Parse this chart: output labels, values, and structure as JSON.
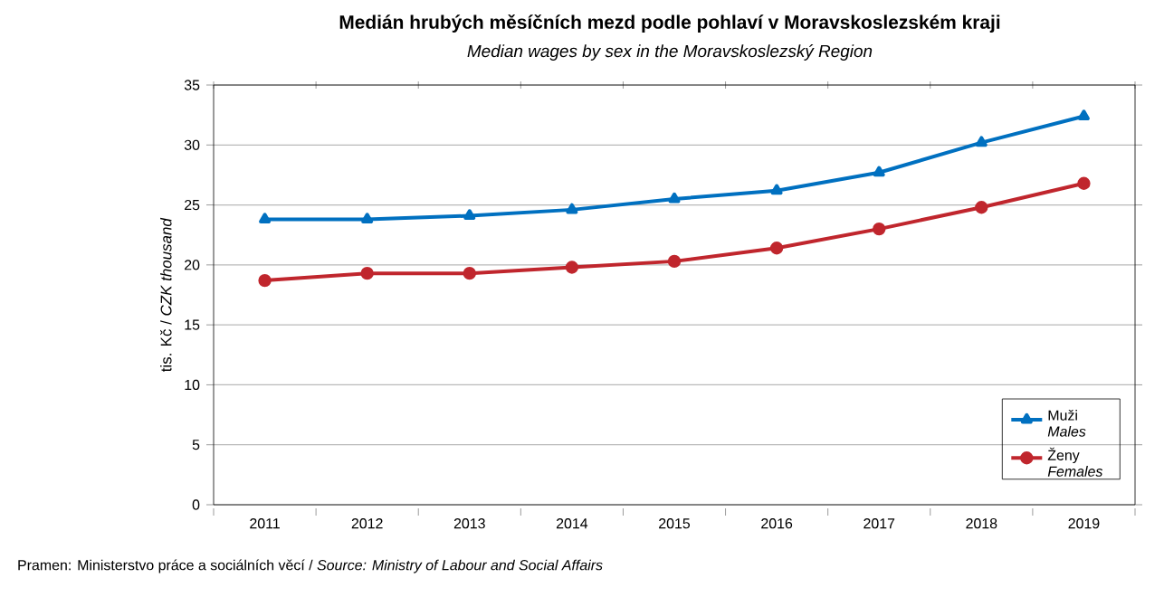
{
  "chart_data": {
    "type": "line",
    "title": "Medián hrubých měsíčních mezd podle pohlaví v Moravskoslezském kraji",
    "subtitle": "*Median wages by sex in the* Moravskoslezský *Region*",
    "ylabel": "tis. Kč / *CZK thousand*",
    "annotations": [
      "Pramen: Ministerstvo práce a sociálních věcí / *Source: Ministry of Labour and Social Affairs*"
    ],
    "categories": [
      "2011",
      "2012",
      "2013",
      "2014",
      "2015",
      "2016",
      "2017",
      "2018",
      "2019"
    ],
    "series": [
      {
        "name": "Muži *Males*",
        "color": "#0070c0",
        "marker": "triangle",
        "values": [
          23.8,
          23.8,
          24.1,
          24.6,
          25.5,
          26.2,
          27.7,
          30.2,
          32.4
        ]
      },
      {
        "name": "Ženy *Females*",
        "color": "#c0262d",
        "marker": "circle",
        "values": [
          18.7,
          19.3,
          19.3,
          19.8,
          20.3,
          21.4,
          23.0,
          24.8,
          26.8
        ]
      }
    ],
    "ylim": [
      0,
      35
    ],
    "yticks": [
      0,
      5,
      10,
      15,
      20,
      25,
      30,
      35
    ],
    "grid": "y",
    "legend": "bottom right",
    "line_style": "solid"
  }
}
